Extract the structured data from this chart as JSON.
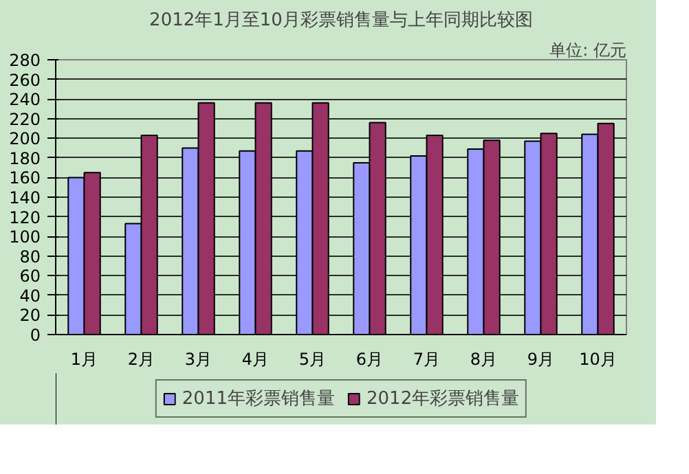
{
  "chart_data": {
    "type": "bar",
    "title": "2012年1月至10月彩票销售量与上年同期比较图",
    "annotations": [
      "单位: 亿元"
    ],
    "categories": [
      "1月",
      "2月",
      "3月",
      "4月",
      "5月",
      "6月",
      "7月",
      "8月",
      "9月",
      "10月"
    ],
    "series": [
      {
        "name": "2011年彩票销售量",
        "color": "#9999ff",
        "values": [
          160,
          113,
          190,
          187,
          187,
          175,
          182,
          189,
          197,
          204
        ]
      },
      {
        "name": "2012年彩票销售量",
        "color": "#993366",
        "values": [
          165,
          203,
          236,
          236,
          236,
          216,
          203,
          198,
          205,
          215
        ]
      }
    ],
    "ylim": [
      0,
      280
    ],
    "yticks": [
      0,
      20,
      40,
      60,
      80,
      100,
      120,
      140,
      160,
      180,
      200,
      220,
      240,
      260,
      280
    ],
    "grid": "y",
    "legend": "bottom"
  }
}
